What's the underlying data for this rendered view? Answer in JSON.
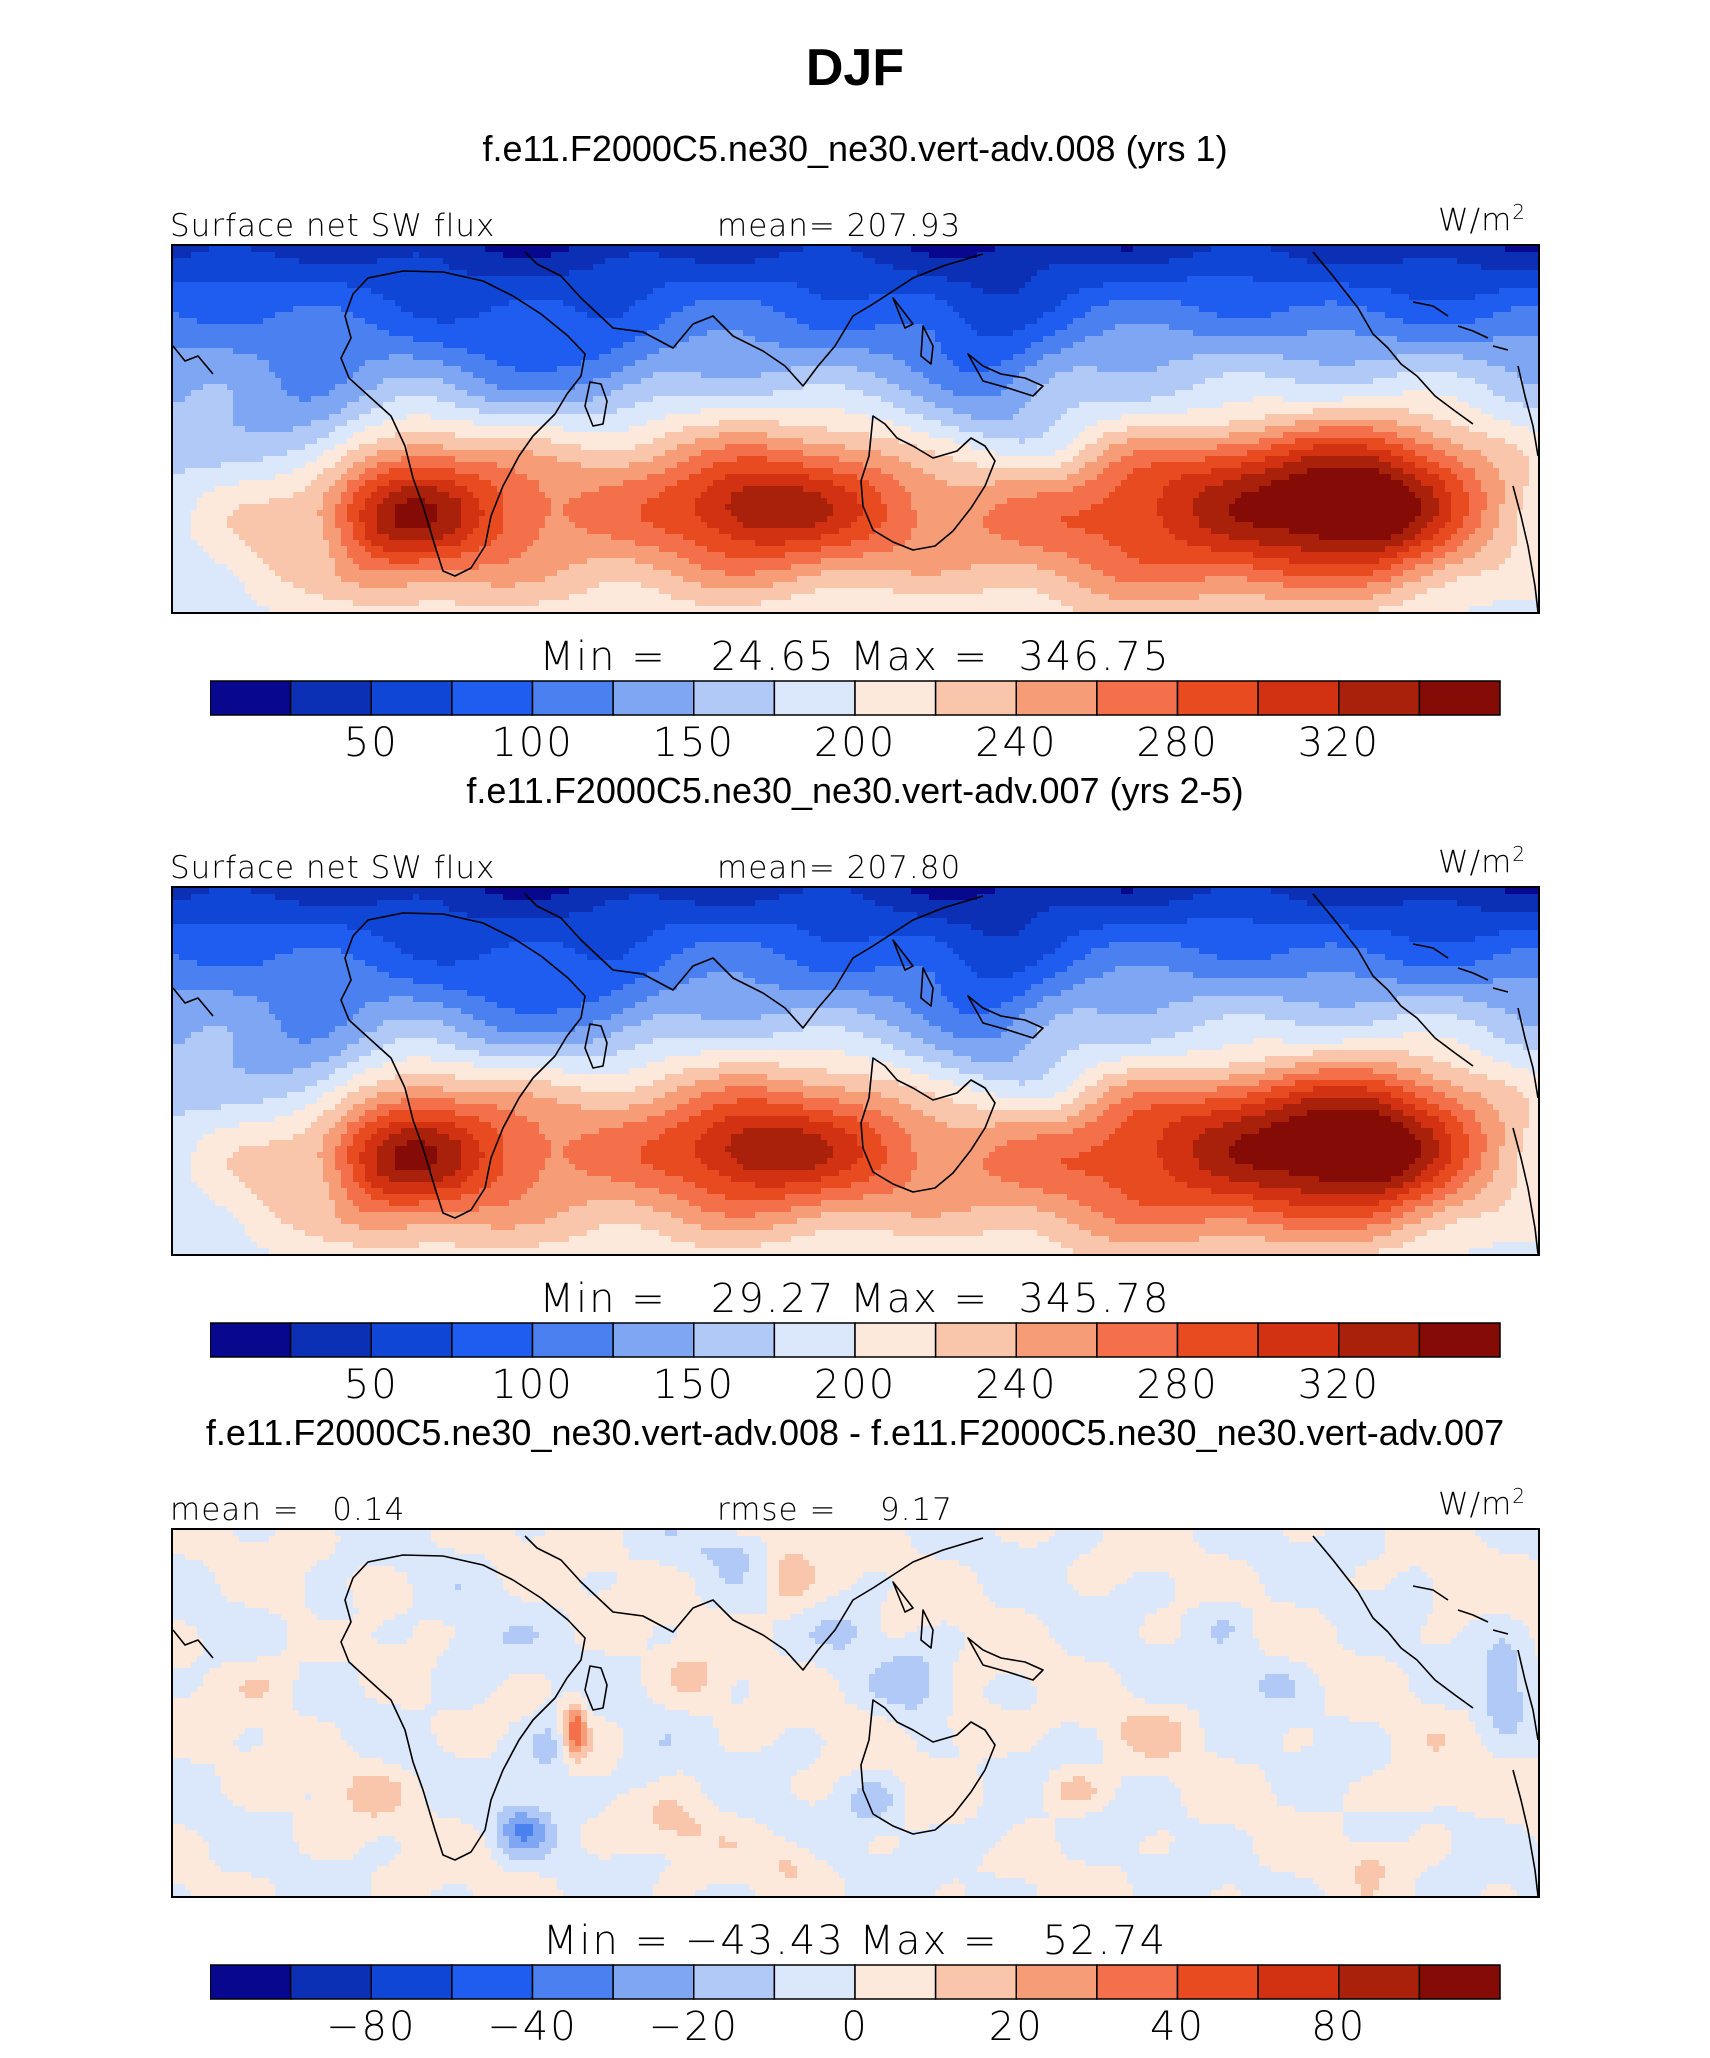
{
  "title": "DJF",
  "colormap": [
    "#08088e",
    "#0b2fb5",
    "#0f46d6",
    "#1f5cf0",
    "#4a80ef",
    "#7fa6f2",
    "#b1c9f6",
    "#dbe7fb",
    "#fde9dc",
    "#f9c6ab",
    "#f69c77",
    "#f3704a",
    "#e94b21",
    "#d23211",
    "#a9200b",
    "#850b06"
  ],
  "panels": [
    {
      "case_title": "f.e11.F2000C5.ne30_ne30.vert-adv.008 (yrs 1)",
      "left_label": "Surface net SW flux",
      "mid_label": "mean= 207.93",
      "units": "W/m",
      "units_exp": "2",
      "minmax": "Min =   24.65 Max =  346.75",
      "colorbar_ticks": [
        "50",
        "100",
        "150",
        "200",
        "240",
        "280",
        "320"
      ],
      "field_kind": "abs"
    },
    {
      "case_title": "f.e11.F2000C5.ne30_ne30.vert-adv.007 (yrs 2-5)",
      "left_label": "Surface net SW flux",
      "mid_label": "mean= 207.80",
      "units": "W/m",
      "units_exp": "2",
      "minmax": "Min =   29.27 Max =  345.78",
      "colorbar_ticks": [
        "50",
        "100",
        "150",
        "200",
        "240",
        "280",
        "320"
      ],
      "field_kind": "abs"
    },
    {
      "case_title": "f.e11.F2000C5.ne30_ne30.vert-adv.008 - f.e11.F2000C5.ne30_ne30.vert-adv.007",
      "left_label": "mean =   0.14",
      "mid_label": "rmse =    9.17",
      "units": "W/m",
      "units_exp": "2",
      "minmax": "Min = −43.43 Max =   52.74",
      "colorbar_ticks": [
        "−80",
        "−40",
        "−20",
        "0",
        "20",
        "40",
        "80"
      ],
      "field_kind": "diff"
    }
  ],
  "chart_data": [
    {
      "type": "heatmap",
      "title": "f.e11.F2000C5.ne30_ne30.vert-adv.008 (yrs 1)",
      "variable": "Surface net SW flux",
      "units": "W/m2",
      "mean": 207.93,
      "min": 24.65,
      "max": 346.75,
      "colorbar_levels": [
        25,
        50,
        75,
        100,
        125,
        150,
        175,
        200,
        220,
        240,
        260,
        280,
        300,
        320,
        340
      ],
      "colorbar_tick_labels": [
        50,
        100,
        150,
        200,
        240,
        280,
        320
      ]
    },
    {
      "type": "heatmap",
      "title": "f.e11.F2000C5.ne30_ne30.vert-adv.007 (yrs 2-5)",
      "variable": "Surface net SW flux",
      "units": "W/m2",
      "mean": 207.8,
      "min": 29.27,
      "max": 345.78,
      "colorbar_levels": [
        25,
        50,
        75,
        100,
        125,
        150,
        175,
        200,
        220,
        240,
        260,
        280,
        300,
        320,
        340
      ],
      "colorbar_tick_labels": [
        50,
        100,
        150,
        200,
        240,
        280,
        320
      ]
    },
    {
      "type": "heatmap",
      "title": "f.e11.F2000C5.ne30_ne30.vert-adv.008 - f.e11.F2000C5.ne30_ne30.vert-adv.007",
      "units": "W/m2",
      "mean": 0.14,
      "rmse": 9.17,
      "min": -43.43,
      "max": 52.74,
      "colorbar_levels": [
        -100,
        -80,
        -60,
        -40,
        -30,
        -20,
        -10,
        0,
        10,
        20,
        30,
        40,
        60,
        80,
        100
      ],
      "colorbar_tick_labels": [
        -80,
        -40,
        -20,
        0,
        20,
        40,
        80
      ]
    }
  ]
}
